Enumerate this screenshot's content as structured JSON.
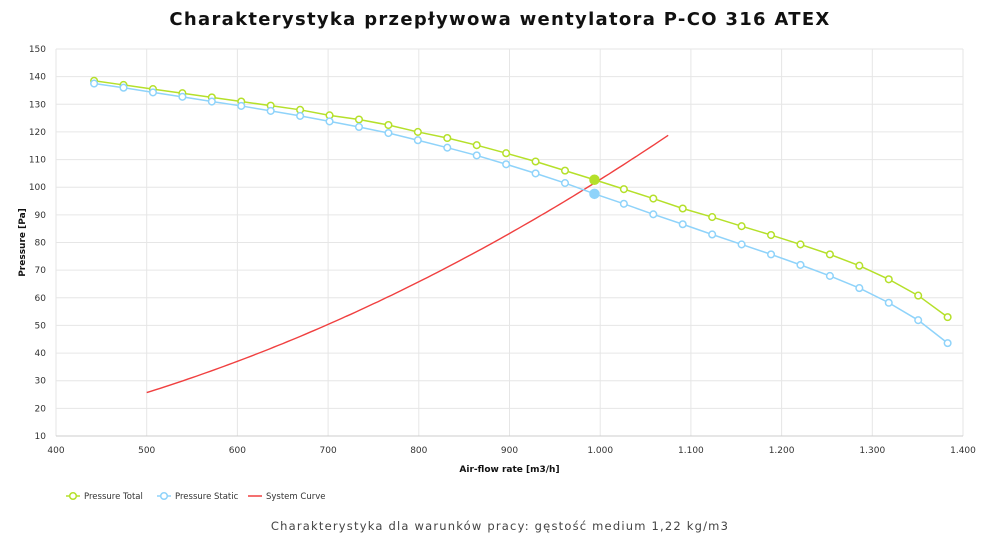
{
  "chart_data": {
    "type": "line",
    "title": "Charakterystyka przepływowa wentylatora P-CO 316 ATEX",
    "subtitle": "Charakterystyka dla warunków pracy: gęstość medium 1,22 kg/m3",
    "xlabel": "Air-flow rate [m3/h]",
    "ylabel": "Pressure [Pa]",
    "xlim": [
      400,
      1400
    ],
    "ylim": [
      10,
      150
    ],
    "xticks": [
      400,
      500,
      600,
      700,
      800,
      900,
      1000,
      1100,
      1200,
      1300,
      1400
    ],
    "xtick_labels": [
      "400",
      "500",
      "600",
      "700",
      "800",
      "900",
      "1.000",
      "1.100",
      "1.200",
      "1.300",
      "1.400"
    ],
    "yticks": [
      10,
      20,
      30,
      40,
      50,
      60,
      70,
      80,
      90,
      100,
      110,
      120,
      130,
      140,
      150
    ],
    "grid": true,
    "legend_position": "bottom-left",
    "x_start": 442,
    "x_step": 32.45,
    "n_points": 30,
    "operating_point_index": 17,
    "series": [
      {
        "name": "Pressure Total",
        "color": "#b5e02a",
        "values": [
          138.5,
          137,
          135.5,
          134,
          132.5,
          131,
          129.5,
          128,
          126,
          124.5,
          122.5,
          120,
          117.8,
          115.2,
          112.3,
          109.3,
          106,
          102.7,
          99.3,
          95.9,
          92.3,
          89.2,
          85.9,
          82.7,
          79.3,
          75.7,
          71.6,
          66.7,
          60.8,
          53
        ]
      },
      {
        "name": "Pressure Static",
        "color": "#8fd3fa",
        "values": [
          137.5,
          136,
          134.3,
          132.7,
          131,
          129.4,
          127.6,
          125.8,
          123.8,
          121.8,
          119.6,
          117,
          114.3,
          111.5,
          108.3,
          105,
          101.5,
          97.6,
          94,
          90.2,
          86.6,
          82.9,
          79.3,
          75.7,
          71.9,
          67.9,
          63.5,
          58.2,
          51.9,
          43.6
        ]
      },
      {
        "name": "System Curve",
        "color": "#f04040",
        "formula": "p = 0.0001028 * q^2",
        "x_range": [
          500,
          1075
        ]
      }
    ]
  }
}
